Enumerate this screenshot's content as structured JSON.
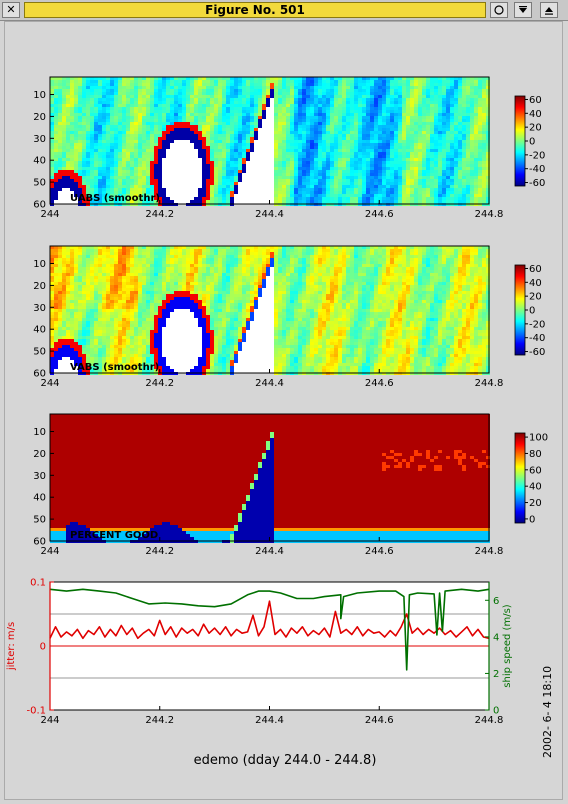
{
  "window": {
    "title": "Figure No. 501",
    "close_glyph": "✕",
    "icons": [
      "close-icon",
      "circle-icon",
      "minimize-icon",
      "maximize-icon"
    ]
  },
  "footer": {
    "title": "edemo (dday 244.0 - 244.8)",
    "timestamp": "2002- 6- 4  18:10"
  },
  "chart_data": [
    {
      "type": "heatmap",
      "label": "UABS  (smoothr)",
      "x_ticks": [
        "244",
        "244.2",
        "244.4",
        "244.6",
        "244.8"
      ],
      "y_ticks": [
        "10",
        "20",
        "30",
        "40",
        "50",
        "60"
      ],
      "xlim": [
        244,
        244.8
      ],
      "ylim": [
        60,
        2
      ],
      "colorbar_ticks": [
        "60",
        "40",
        "20",
        "0",
        "-20",
        "-40",
        "-60"
      ],
      "colorbar_range": [
        -65,
        65
      ],
      "colormap": "jet"
    },
    {
      "type": "heatmap",
      "label": "VABS  (smoothr)",
      "x_ticks": [
        "244",
        "244.2",
        "244.4",
        "244.6",
        "244.8"
      ],
      "y_ticks": [
        "10",
        "20",
        "30",
        "40",
        "50",
        "60"
      ],
      "xlim": [
        244,
        244.8
      ],
      "ylim": [
        60,
        2
      ],
      "colorbar_ticks": [
        "60",
        "40",
        "20",
        "0",
        "-20",
        "-40",
        "-60"
      ],
      "colorbar_range": [
        -65,
        65
      ],
      "colormap": "jet"
    },
    {
      "type": "heatmap",
      "label": "PERCENT GOOD",
      "x_ticks": [
        "244",
        "244.2",
        "244.4",
        "244.6",
        "244.8"
      ],
      "y_ticks": [
        "10",
        "20",
        "30",
        "40",
        "50",
        "60"
      ],
      "xlim": [
        244,
        244.8
      ],
      "ylim": [
        60,
        2
      ],
      "colorbar_ticks": [
        "100",
        "80",
        "60",
        "40",
        "20",
        "0"
      ],
      "colorbar_range": [
        -5,
        105
      ],
      "colormap": "jet"
    },
    {
      "type": "line",
      "x_ticks": [
        "244",
        "244.2",
        "244.4",
        "244.6",
        "244.8"
      ],
      "xlim": [
        244,
        244.8
      ],
      "ylabel": "jitter: m/s",
      "ylim": [
        -0.1,
        0.1
      ],
      "y_ticks": [
        "0.1",
        "0",
        "-0.1"
      ],
      "y2label": "ship speed (m/s)",
      "y2lim": [
        0,
        7
      ],
      "y2_ticks": [
        "6",
        "4",
        "2",
        "0"
      ],
      "grid_y": [
        0.05,
        -0.05
      ],
      "colors": {
        "jitter": "#e00000",
        "speed": "#007000"
      },
      "series": [
        {
          "name": "jitter: m/s",
          "axis": "left",
          "points": [
            [
              244.0,
              0.012
            ],
            [
              244.01,
              0.03
            ],
            [
              244.02,
              0.014
            ],
            [
              244.03,
              0.022
            ],
            [
              244.04,
              0.016
            ],
            [
              244.05,
              0.026
            ],
            [
              244.06,
              0.012
            ],
            [
              244.07,
              0.024
            ],
            [
              244.08,
              0.018
            ],
            [
              244.09,
              0.03
            ],
            [
              244.1,
              0.014
            ],
            [
              244.11,
              0.026
            ],
            [
              244.12,
              0.016
            ],
            [
              244.13,
              0.032
            ],
            [
              244.14,
              0.018
            ],
            [
              244.15,
              0.028
            ],
            [
              244.16,
              0.012
            ],
            [
              244.17,
              0.02
            ],
            [
              244.18,
              0.026
            ],
            [
              244.19,
              0.016
            ],
            [
              244.2,
              0.04
            ],
            [
              244.21,
              0.018
            ],
            [
              244.22,
              0.03
            ],
            [
              244.23,
              0.014
            ],
            [
              244.24,
              0.028
            ],
            [
              244.25,
              0.02
            ],
            [
              244.26,
              0.026
            ],
            [
              244.27,
              0.016
            ],
            [
              244.28,
              0.034
            ],
            [
              244.29,
              0.02
            ],
            [
              244.3,
              0.028
            ],
            [
              244.31,
              0.018
            ],
            [
              244.32,
              0.03
            ],
            [
              244.33,
              0.016
            ],
            [
              244.34,
              0.026
            ],
            [
              244.35,
              0.02
            ],
            [
              244.36,
              0.022
            ],
            [
              244.37,
              0.048
            ],
            [
              244.38,
              0.016
            ],
            [
              244.39,
              0.03
            ],
            [
              244.4,
              0.07
            ],
            [
              244.41,
              0.018
            ],
            [
              244.42,
              0.026
            ],
            [
              244.43,
              0.014
            ],
            [
              244.44,
              0.028
            ],
            [
              244.45,
              0.02
            ],
            [
              244.46,
              0.03
            ],
            [
              244.47,
              0.016
            ],
            [
              244.48,
              0.024
            ],
            [
              244.49,
              0.018
            ],
            [
              244.5,
              0.028
            ],
            [
              244.51,
              0.014
            ],
            [
              244.52,
              0.054
            ],
            [
              244.53,
              0.02
            ],
            [
              244.54,
              0.026
            ],
            [
              244.55,
              0.018
            ],
            [
              244.56,
              0.03
            ],
            [
              244.57,
              0.016
            ],
            [
              244.58,
              0.026
            ],
            [
              244.59,
              0.02
            ],
            [
              244.6,
              0.022
            ],
            [
              244.61,
              0.014
            ],
            [
              244.62,
              0.024
            ],
            [
              244.63,
              0.016
            ],
            [
              244.64,
              0.03
            ],
            [
              244.65,
              0.05
            ],
            [
              244.66,
              0.02
            ],
            [
              244.67,
              0.028
            ],
            [
              244.68,
              0.018
            ],
            [
              244.69,
              0.026
            ],
            [
              244.7,
              0.02
            ],
            [
              244.71,
              0.028
            ],
            [
              244.72,
              0.018
            ],
            [
              244.73,
              0.024
            ],
            [
              244.74,
              0.014
            ],
            [
              244.75,
              0.022
            ],
            [
              244.76,
              0.03
            ],
            [
              244.77,
              0.016
            ],
            [
              244.78,
              0.026
            ],
            [
              244.79,
              0.014
            ],
            [
              244.8,
              0.012
            ]
          ]
        },
        {
          "name": "ship speed (m/s)",
          "axis": "right",
          "points": [
            [
              244.0,
              6.6
            ],
            [
              244.03,
              6.5
            ],
            [
              244.06,
              6.6
            ],
            [
              244.09,
              6.5
            ],
            [
              244.12,
              6.4
            ],
            [
              244.15,
              6.1
            ],
            [
              244.18,
              5.8
            ],
            [
              244.21,
              5.85
            ],
            [
              244.24,
              5.8
            ],
            [
              244.27,
              5.7
            ],
            [
              244.3,
              5.65
            ],
            [
              244.33,
              5.8
            ],
            [
              244.36,
              6.3
            ],
            [
              244.38,
              6.5
            ],
            [
              244.4,
              6.5
            ],
            [
              244.42,
              6.4
            ],
            [
              244.45,
              6.1
            ],
            [
              244.48,
              6.1
            ],
            [
              244.5,
              6.2
            ],
            [
              244.53,
              6.3
            ],
            [
              244.53,
              5.0
            ],
            [
              244.535,
              6.2
            ],
            [
              244.56,
              6.4
            ],
            [
              244.6,
              6.5
            ],
            [
              244.63,
              6.5
            ],
            [
              244.645,
              6.2
            ],
            [
              244.65,
              2.2
            ],
            [
              244.655,
              6.3
            ],
            [
              244.67,
              6.4
            ],
            [
              244.7,
              6.35
            ],
            [
              244.705,
              4.1
            ],
            [
              244.71,
              6.4
            ],
            [
              244.715,
              4.3
            ],
            [
              244.72,
              6.5
            ],
            [
              244.75,
              6.6
            ],
            [
              244.78,
              6.5
            ],
            [
              244.8,
              6.6
            ]
          ]
        }
      ]
    }
  ]
}
